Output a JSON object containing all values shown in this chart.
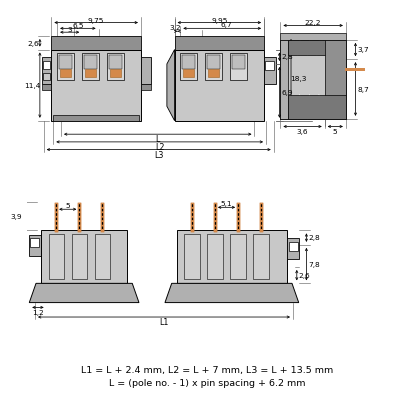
{
  "bg_color": "#ffffff",
  "line_color": "#000000",
  "gray_light": "#c8c8c8",
  "gray_mid": "#b0b0b0",
  "gray_dark": "#909090",
  "gray_hatch": "#787878",
  "orange_color": "#d4894a",
  "text_line1": "L1 = L + 2.4 mm, L2 = L + 7 mm, L3 = L + 13.5 mm",
  "text_line2": "L = (pole no. - 1) x pin spacing + 6.2 mm",
  "dims_top": {
    "d975": "9,75",
    "d65": "6,5",
    "d3": "3",
    "d26": "2,6",
    "d114": "11,4",
    "d995": "9,95",
    "d32": "3,2",
    "d67": "6,7",
    "d28": "2,8",
    "d69": "6,9",
    "d183": "18,3",
    "d222": "22,2",
    "d37": "3,7",
    "d87": "8,7",
    "d36": "3,6",
    "d5": "5"
  },
  "dims_bot": {
    "d39": "3,9",
    "d5b": "5",
    "d51": "5,1",
    "d28b": "2,8",
    "d78": "7,8",
    "d26b": "2,6",
    "d12": "1,2"
  },
  "labels": {
    "L": "L",
    "L1": "L1",
    "L2": "L2",
    "L3": "L3"
  }
}
